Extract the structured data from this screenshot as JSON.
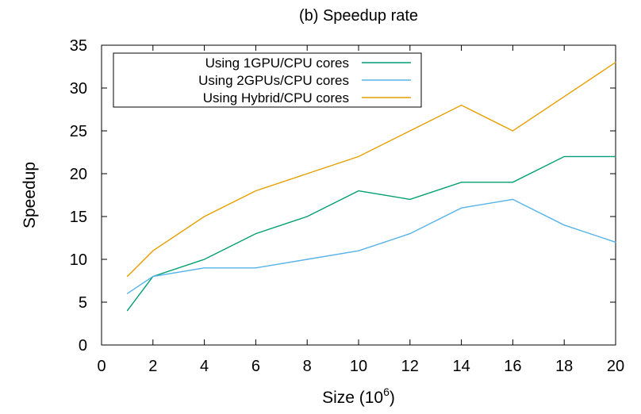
{
  "chart_data": {
    "type": "line",
    "title": "(b) Speedup rate",
    "xlabel": "Size (10",
    "xlabel_superscript": "6",
    "xlabel_suffix": ")",
    "ylabel": "Speedup",
    "xlim": [
      0,
      20
    ],
    "ylim": [
      0,
      35
    ],
    "xticks": [
      0,
      2,
      4,
      6,
      8,
      10,
      12,
      14,
      16,
      18,
      20
    ],
    "yticks": [
      0,
      5,
      10,
      15,
      20,
      25,
      30,
      35
    ],
    "grid": false,
    "legend_position": "top-left",
    "x": [
      1,
      2,
      4,
      6,
      8,
      10,
      12,
      14,
      16,
      18,
      20
    ],
    "series": [
      {
        "name": "Using 1GPU/CPU cores",
        "color": "#009e73",
        "values": [
          4,
          8,
          10,
          13,
          15,
          18,
          17,
          19,
          19,
          22,
          22
        ]
      },
      {
        "name": "Using 2GPUs/CPU cores",
        "color": "#56b4e9",
        "values": [
          6,
          8,
          9,
          9,
          10,
          11,
          13,
          16,
          17,
          14,
          12
        ]
      },
      {
        "name": "Using Hybrid/CPU cores",
        "color": "#e69f00",
        "values": [
          8,
          11,
          15,
          18,
          20,
          22,
          25,
          28,
          25,
          29,
          33
        ]
      }
    ]
  }
}
